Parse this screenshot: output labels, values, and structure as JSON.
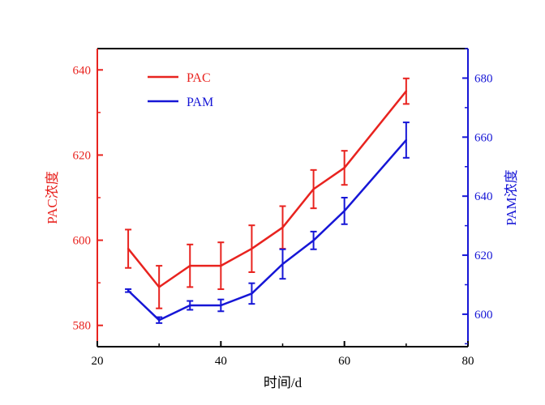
{
  "chart_data": {
    "type": "line",
    "xlabel": "时间/d",
    "xlim": [
      20,
      80
    ],
    "x_ticks": [
      20,
      40,
      60,
      80
    ],
    "axes": {
      "left": {
        "label": "PAC浓度",
        "ylim": [
          575,
          645
        ],
        "ticks": [
          580,
          600,
          620,
          640
        ],
        "color": "#e8231f"
      },
      "right": {
        "label": "PAM浓度",
        "ylim": [
          589,
          690
        ],
        "ticks": [
          600,
          620,
          640,
          660,
          680
        ],
        "color": "#1616d6"
      }
    },
    "series": [
      {
        "name": "PAC",
        "axis": "left",
        "color": "#e8231f",
        "x": [
          25,
          30,
          35,
          40,
          45,
          50,
          55,
          60,
          70
        ],
        "values": [
          598,
          589,
          594,
          594,
          598,
          603,
          612,
          617,
          635
        ],
        "err": [
          4.5,
          5,
          5,
          5.5,
          5.5,
          5,
          4.5,
          4,
          3
        ]
      },
      {
        "name": "PAM",
        "axis": "right",
        "color": "#1616d6",
        "x": [
          25,
          30,
          35,
          40,
          45,
          50,
          55,
          60,
          70
        ],
        "values": [
          608,
          598,
          603,
          603,
          607,
          617,
          625,
          635,
          659
        ],
        "err": [
          0.5,
          1,
          1.5,
          2,
          3.5,
          5,
          3,
          4.5,
          6
        ]
      }
    ],
    "legend": {
      "position": "top-left",
      "entries": [
        "PAC",
        "PAM"
      ]
    }
  }
}
